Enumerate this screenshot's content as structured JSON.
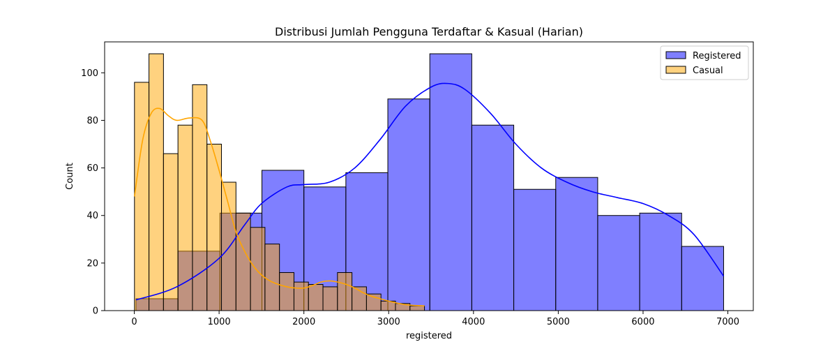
{
  "chart_data": {
    "type": "histogram",
    "title": "Distribusi Jumlah Pengguna Terdaftar & Kasual (Harian)",
    "xlabel": "registered",
    "ylabel": "Count",
    "xlim": [
      -350,
      7300
    ],
    "ylim": [
      0,
      113
    ],
    "xticks": [
      0,
      1000,
      2000,
      3000,
      4000,
      5000,
      6000,
      7000
    ],
    "yticks": [
      0,
      20,
      40,
      60,
      80,
      100
    ],
    "legend_position": "top-right",
    "grid": false,
    "series": [
      {
        "name": "Registered",
        "color": "#0000ff",
        "fill_opacity": 0.5,
        "bin_edges": [
          20,
          515,
          1010,
          1505,
          2000,
          2495,
          2990,
          3485,
          3980,
          4475,
          4970,
          5465,
          5960,
          6455,
          6950
        ],
        "counts": [
          5,
          25,
          41,
          59,
          52,
          58,
          89,
          108,
          78,
          51,
          56,
          40,
          41,
          27
        ],
        "kde": [
          [
            20,
            4.5
          ],
          [
            500,
            10
          ],
          [
            1000,
            22
          ],
          [
            1300,
            36
          ],
          [
            1500,
            45
          ],
          [
            1800,
            52
          ],
          [
            2000,
            53
          ],
          [
            2300,
            54
          ],
          [
            2600,
            60
          ],
          [
            2900,
            72
          ],
          [
            3200,
            86
          ],
          [
            3500,
            94
          ],
          [
            3700,
            95.5
          ],
          [
            3900,
            93
          ],
          [
            4200,
            83
          ],
          [
            4500,
            70
          ],
          [
            4800,
            60
          ],
          [
            5100,
            54
          ],
          [
            5400,
            50
          ],
          [
            5700,
            47.5
          ],
          [
            6000,
            45
          ],
          [
            6300,
            40
          ],
          [
            6600,
            32
          ],
          [
            6950,
            14.5
          ]
        ]
      },
      {
        "name": "Casual",
        "color": "#ffa500",
        "fill_opacity": 0.5,
        "bin_edges": [
          2,
          173,
          344,
          515,
          686,
          857,
          1028,
          1199,
          1370,
          1541,
          1712,
          1883,
          2054,
          2225,
          2396,
          2567,
          2738,
          2909,
          3080,
          3251,
          3422
        ],
        "counts": [
          96,
          108,
          66,
          78,
          95,
          70,
          54,
          41,
          35,
          28,
          16,
          12,
          11,
          10,
          16,
          10,
          7,
          4,
          3,
          2
        ],
        "kde": [
          [
            2,
            48
          ],
          [
            100,
            72
          ],
          [
            200,
            83
          ],
          [
            300,
            85
          ],
          [
            400,
            82
          ],
          [
            500,
            80
          ],
          [
            650,
            81
          ],
          [
            800,
            80
          ],
          [
            900,
            71
          ],
          [
            1000,
            59
          ],
          [
            1100,
            46
          ],
          [
            1200,
            33
          ],
          [
            1300,
            25
          ],
          [
            1400,
            19
          ],
          [
            1500,
            15
          ],
          [
            1600,
            12.5
          ],
          [
            1700,
            11
          ],
          [
            1800,
            10
          ],
          [
            1900,
            9.5
          ],
          [
            2000,
            9.5
          ],
          [
            2100,
            10.5
          ],
          [
            2200,
            12
          ],
          [
            2300,
            12.5
          ],
          [
            2400,
            12
          ],
          [
            2500,
            11
          ],
          [
            2600,
            9.5
          ],
          [
            2700,
            7.5
          ],
          [
            2800,
            6
          ],
          [
            2900,
            5
          ],
          [
            3000,
            4
          ],
          [
            3200,
            2.5
          ],
          [
            3422,
            2
          ]
        ]
      }
    ]
  }
}
